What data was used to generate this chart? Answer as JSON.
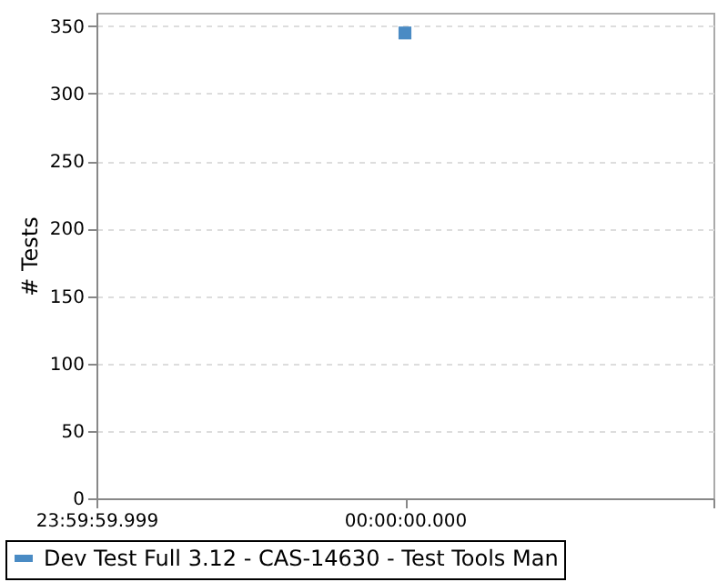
{
  "chart_data": {
    "type": "line",
    "ylabel": "# Tests",
    "categories": [
      "23:59:59.999",
      "00:00:00.000",
      null
    ],
    "ylim": [
      0,
      360
    ],
    "yticks": [
      0,
      50,
      100,
      150,
      200,
      250,
      300,
      350
    ],
    "series": [
      {
        "name": "Dev Test Full 3.12 - CAS-14630 - Test Tools Man",
        "color": "#4a8bc4",
        "values": [
          null,
          345,
          null
        ]
      }
    ],
    "grid": "y",
    "legend": "bottom",
    "marker": "square"
  }
}
